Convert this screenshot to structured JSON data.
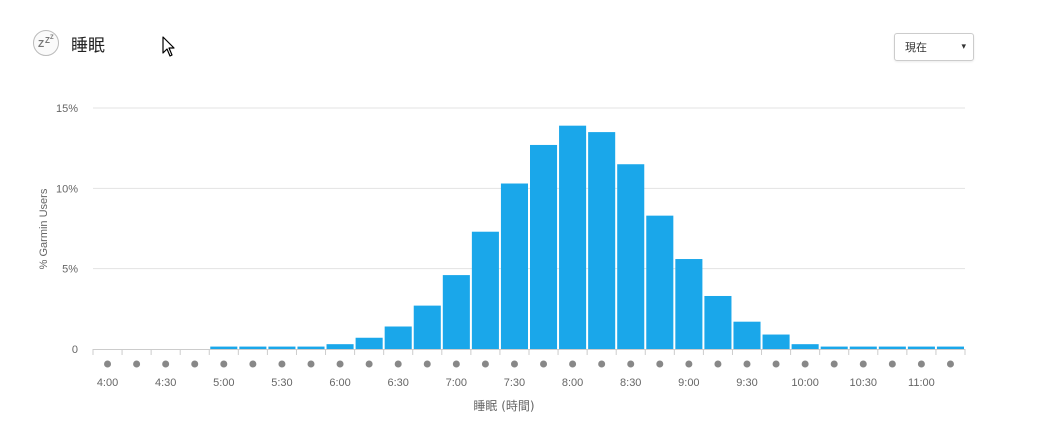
{
  "header": {
    "icon": "zzz-sleep-icon",
    "title": "睡眠"
  },
  "period_select": {
    "selected": "現在",
    "caret": "▾"
  },
  "colors": {
    "bar": "#1aa7ea",
    "grid": "#e3e3e3",
    "axis": "#cccccc",
    "marker": "#888888"
  },
  "chart_data": {
    "type": "bar",
    "categories": [
      "4:00",
      "4:15",
      "4:30",
      "4:45",
      "5:00",
      "5:15",
      "5:30",
      "5:45",
      "6:00",
      "6:15",
      "6:30",
      "6:45",
      "7:00",
      "7:15",
      "7:30",
      "7:45",
      "8:00",
      "8:15",
      "8:30",
      "8:45",
      "9:00",
      "9:15",
      "9:30",
      "9:45",
      "10:00",
      "10:15",
      "10:30",
      "10:45",
      "11:00",
      "11:15"
    ],
    "values": [
      0,
      0,
      0,
      0,
      0.15,
      0.15,
      0.15,
      0.15,
      0.3,
      0.7,
      1.4,
      2.7,
      4.6,
      7.3,
      10.3,
      12.7,
      13.9,
      13.5,
      11.5,
      8.3,
      5.6,
      3.3,
      1.7,
      0.9,
      0.3,
      0.15,
      0.15,
      0.15,
      0.15,
      0.15
    ],
    "xtick_labels": [
      "4:00",
      "4:30",
      "5:00",
      "5:30",
      "6:00",
      "6:30",
      "7:00",
      "7:30",
      "8:00",
      "8:30",
      "9:00",
      "9:30",
      "10:00",
      "10:30",
      "11:00"
    ],
    "ytick_labels": [
      "0",
      "5%",
      "10%",
      "15%"
    ],
    "ytick_values": [
      0,
      5,
      10,
      15
    ],
    "xlabel": "睡眠 (時間)",
    "ylabel": "% Garmin Users",
    "ylim": [
      0,
      15
    ],
    "grid": true,
    "legend": false
  }
}
